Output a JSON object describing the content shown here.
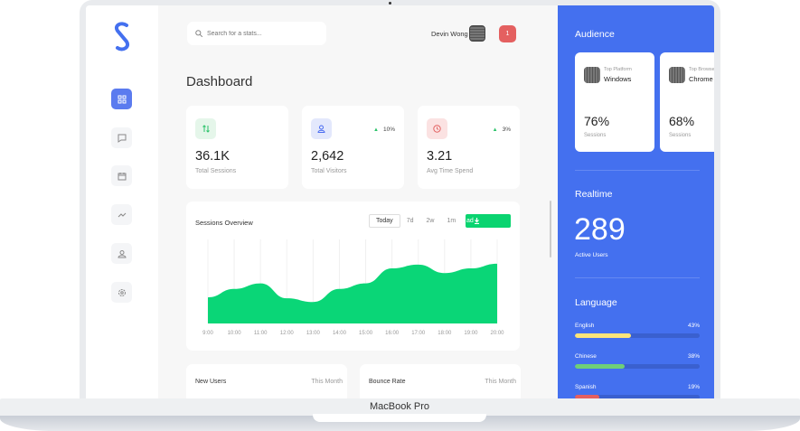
{
  "device": {
    "label": "MacBook Pro"
  },
  "sidebar": {
    "items": [
      {
        "name": "dashboard",
        "icon": "grid-icon",
        "active": true
      },
      {
        "name": "messages",
        "icon": "chat-icon"
      },
      {
        "name": "calendar",
        "icon": "calendar-icon"
      },
      {
        "name": "analytics",
        "icon": "trend-icon"
      },
      {
        "name": "profile",
        "icon": "user-icon"
      },
      {
        "name": "settings",
        "icon": "gear-icon"
      }
    ]
  },
  "header": {
    "search_placeholder": "Search for a stats...",
    "user_name": "Devin Wong",
    "notification_count": "1"
  },
  "page_title": "Dashboard",
  "stats": [
    {
      "value": "36.1K",
      "label": "Total Sessions",
      "change": "",
      "icon": "arrows-icon",
      "color": "#2bc36a",
      "bg": "#e5f6ea"
    },
    {
      "value": "2,642",
      "label": "Total Visitors",
      "change": "10%",
      "icon": "user-icon",
      "color": "#4a6cf0",
      "bg": "#e3e8fc"
    },
    {
      "value": "3.21",
      "label": "Avg Time Spend",
      "change": "3%",
      "icon": "clock-icon",
      "color": "#e36464",
      "bg": "#fbe2e2"
    }
  ],
  "sessions": {
    "title": "Sessions Overview",
    "tabs": [
      "Today",
      "7d",
      "2w",
      "1m"
    ],
    "active_tab": "Today",
    "download_label": "ad"
  },
  "chart_data": {
    "type": "area",
    "title": "Sessions Overview",
    "x": [
      "9:00",
      "10:00",
      "11:00",
      "12:00",
      "13:00",
      "14:00",
      "15:00",
      "16:00",
      "17:00",
      "18:00",
      "19:00",
      "20:00"
    ],
    "values": [
      28,
      37,
      43,
      27,
      23,
      37,
      43,
      59,
      63,
      54,
      59,
      64
    ],
    "color": "#0ad677",
    "grid": true,
    "ylim": [
      0,
      90
    ]
  },
  "bottom_cards": [
    {
      "title": "New Users",
      "period": "This Month"
    },
    {
      "title": "Bounce Rate",
      "period": "This Month"
    }
  ],
  "audience": {
    "title": "Audience",
    "cards": [
      {
        "key": "Top Platform",
        "value": "Windows",
        "percent": "76%",
        "label": "Sessions"
      },
      {
        "key": "Top Browser",
        "value": "Chrome",
        "percent": "68%",
        "label": "Sessions"
      }
    ]
  },
  "realtime": {
    "title": "Realtime",
    "value": "289",
    "label": "Active Users"
  },
  "language": {
    "title": "Language",
    "items": [
      {
        "name": "English",
        "percent": "43%",
        "value": 43,
        "color": "#fde47a"
      },
      {
        "name": "Chinese",
        "percent": "38%",
        "value": 38,
        "color": "#6fcf78"
      },
      {
        "name": "Spanish",
        "percent": "19%",
        "value": 19,
        "color": "#e56060"
      }
    ]
  }
}
